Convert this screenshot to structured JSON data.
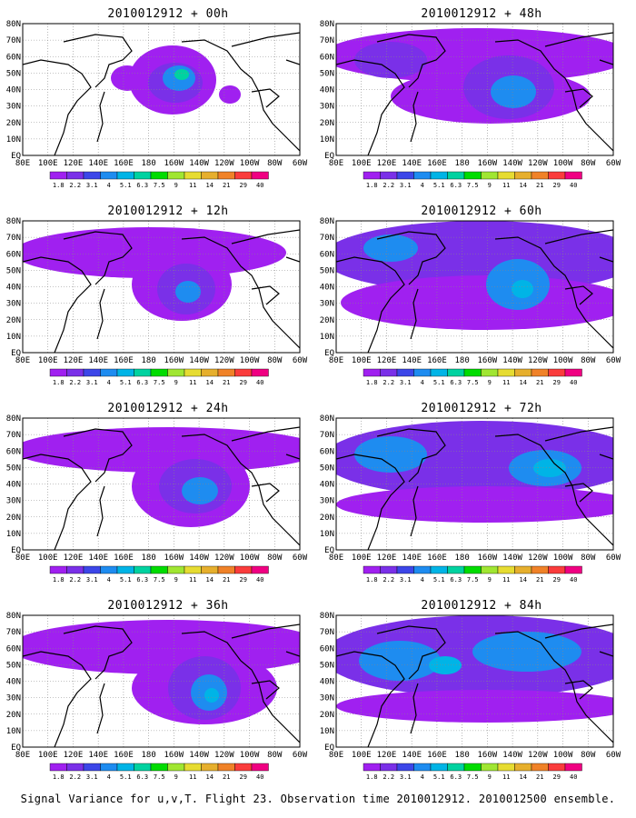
{
  "panels": [
    {
      "title": "2010012912 + 00h",
      "blobs": [
        {
          "level": 0,
          "cx": 115,
          "cy": 60,
          "rx": 18,
          "ry": 14
        },
        {
          "level": 0,
          "cx": 165,
          "cy": 62,
          "rx": 48,
          "ry": 38
        },
        {
          "level": 0,
          "cx": 228,
          "cy": 78,
          "rx": 12,
          "ry": 10
        },
        {
          "level": 1,
          "cx": 168,
          "cy": 65,
          "rx": 30,
          "ry": 22
        },
        {
          "level": 3,
          "cx": 172,
          "cy": 60,
          "rx": 18,
          "ry": 14
        },
        {
          "level": 5,
          "cx": 175,
          "cy": 56,
          "rx": 8,
          "ry": 6
        }
      ]
    },
    {
      "title": "2010012912 + 48h",
      "blobs": [
        {
          "level": 0,
          "cx": 155,
          "cy": 35,
          "rx": 170,
          "ry": 30
        },
        {
          "level": 0,
          "cx": 170,
          "cy": 80,
          "rx": 110,
          "ry": 30
        },
        {
          "level": 1,
          "cx": 60,
          "cy": 40,
          "rx": 40,
          "ry": 20
        },
        {
          "level": 1,
          "cx": 190,
          "cy": 70,
          "rx": 50,
          "ry": 35
        },
        {
          "level": 3,
          "cx": 195,
          "cy": 75,
          "rx": 25,
          "ry": 18
        }
      ]
    },
    {
      "title": "2010012912 + 12h",
      "blobs": [
        {
          "level": 0,
          "cx": 140,
          "cy": 35,
          "rx": 150,
          "ry": 28
        },
        {
          "level": 0,
          "cx": 175,
          "cy": 70,
          "rx": 55,
          "ry": 40
        },
        {
          "level": 1,
          "cx": 180,
          "cy": 75,
          "rx": 32,
          "ry": 28
        },
        {
          "level": 3,
          "cx": 182,
          "cy": 78,
          "rx": 14,
          "ry": 12
        }
      ]
    },
    {
      "title": "2010012912 + 60h",
      "blobs": [
        {
          "level": 1,
          "cx": 160,
          "cy": 40,
          "rx": 175,
          "ry": 40
        },
        {
          "level": 0,
          "cx": 165,
          "cy": 90,
          "rx": 160,
          "ry": 30
        },
        {
          "level": 3,
          "cx": 200,
          "cy": 70,
          "rx": 35,
          "ry": 28
        },
        {
          "level": 3,
          "cx": 60,
          "cy": 30,
          "rx": 30,
          "ry": 15
        },
        {
          "level": 4,
          "cx": 205,
          "cy": 75,
          "rx": 12,
          "ry": 10
        }
      ]
    },
    {
      "title": "2010012912 + 24h",
      "blobs": [
        {
          "level": 0,
          "cx": 160,
          "cy": 35,
          "rx": 170,
          "ry": 25
        },
        {
          "level": 0,
          "cx": 185,
          "cy": 75,
          "rx": 65,
          "ry": 45
        },
        {
          "level": 1,
          "cx": 190,
          "cy": 75,
          "rx": 40,
          "ry": 30
        },
        {
          "level": 3,
          "cx": 195,
          "cy": 80,
          "rx": 20,
          "ry": 15
        }
      ]
    },
    {
      "title": "2010012912 + 72h",
      "blobs": [
        {
          "level": 1,
          "cx": 160,
          "cy": 45,
          "rx": 175,
          "ry": 42
        },
        {
          "level": 0,
          "cx": 165,
          "cy": 95,
          "rx": 165,
          "ry": 20
        },
        {
          "level": 3,
          "cx": 60,
          "cy": 40,
          "rx": 40,
          "ry": 20
        },
        {
          "level": 3,
          "cx": 230,
          "cy": 55,
          "rx": 40,
          "ry": 20
        },
        {
          "level": 4,
          "cx": 235,
          "cy": 55,
          "rx": 18,
          "ry": 10
        }
      ]
    },
    {
      "title": "2010012912 + 36h",
      "blobs": [
        {
          "level": 0,
          "cx": 160,
          "cy": 35,
          "rx": 175,
          "ry": 30
        },
        {
          "level": 0,
          "cx": 200,
          "cy": 80,
          "rx": 80,
          "ry": 40
        },
        {
          "level": 1,
          "cx": 200,
          "cy": 80,
          "rx": 40,
          "ry": 35
        },
        {
          "level": 3,
          "cx": 205,
          "cy": 85,
          "rx": 20,
          "ry": 20
        },
        {
          "level": 4,
          "cx": 208,
          "cy": 88,
          "rx": 8,
          "ry": 8
        }
      ]
    },
    {
      "title": "2010012912 + 84h",
      "blobs": [
        {
          "level": 1,
          "cx": 160,
          "cy": 45,
          "rx": 175,
          "ry": 45
        },
        {
          "level": 0,
          "cx": 165,
          "cy": 100,
          "rx": 165,
          "ry": 18
        },
        {
          "level": 3,
          "cx": 70,
          "cy": 50,
          "rx": 45,
          "ry": 22
        },
        {
          "level": 3,
          "cx": 210,
          "cy": 40,
          "rx": 60,
          "ry": 22
        },
        {
          "level": 4,
          "cx": 120,
          "cy": 55,
          "rx": 18,
          "ry": 10
        }
      ]
    }
  ],
  "map": {
    "lat_labels": [
      "80N",
      "70N",
      "60N",
      "50N",
      "40N",
      "30N",
      "20N",
      "10N",
      "EQ"
    ],
    "lon_labels": [
      "80E",
      "100E",
      "120E",
      "140E",
      "160E",
      "180",
      "160W",
      "140W",
      "120W",
      "100W",
      "80W",
      "60W"
    ]
  },
  "colorbar": {
    "labels": [
      "1.8",
      "2.2",
      "3.1",
      "4",
      "5.1",
      "6.3",
      "7.5",
      "9",
      "11",
      "14",
      "21",
      "29",
      "40"
    ],
    "colors": [
      "#a020f0",
      "#7a30e8",
      "#3c46e8",
      "#1e8cf0",
      "#00b4e6",
      "#00d2a0",
      "#00dc00",
      "#a0e632",
      "#e6dc32",
      "#e6af2d",
      "#f08228",
      "#fa3c3c",
      "#f00082"
    ]
  },
  "footer": {
    "caption": "Signal Variance for u,v,T. Flight 23. Observation time 2010012912. 2010012500 ensemble."
  }
}
